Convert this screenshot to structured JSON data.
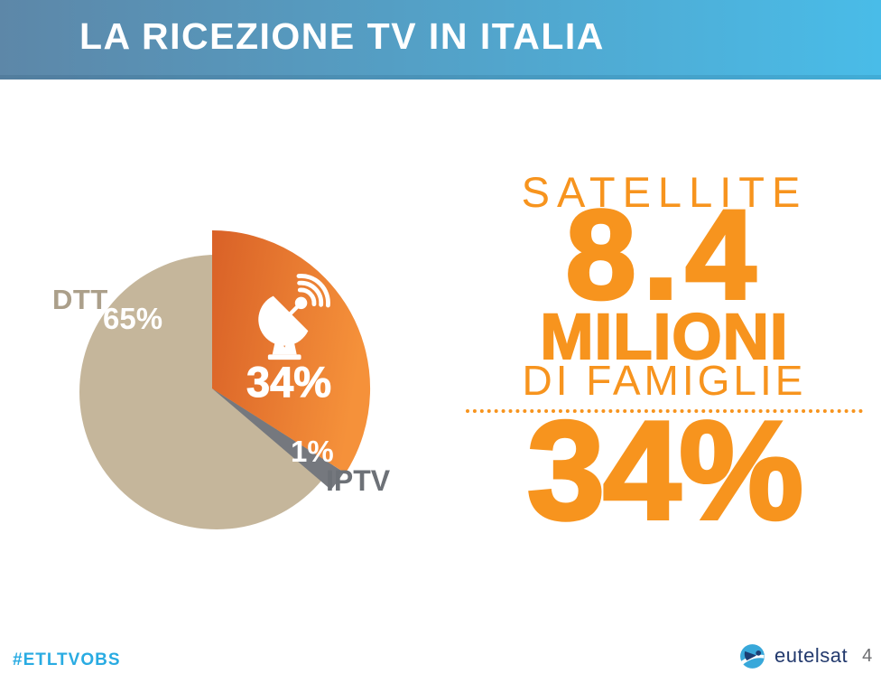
{
  "theme": {
    "header_grad_left": "#5d87a8",
    "header_grad_right": "#49bce8",
    "orange": "#f7941e",
    "beige": "#c5b69b",
    "beige_text": "#ab9f8a",
    "slate": "#75787e",
    "slate_text": "#6d7177",
    "gray_text": "#808285",
    "cyan": "#29abe2",
    "navy": "#22396d",
    "page_gray": "#6d6e71"
  },
  "header": {
    "title": "LA RICEZIONE TV IN ITALIA"
  },
  "chart_data": {
    "type": "pie",
    "title": "LA RICEZIONE TV IN ITALIA",
    "unit": "%",
    "start_angle_deg": 0,
    "direction": "clockwise",
    "legend_position": "on-slice",
    "slices": [
      {
        "label": "SATELLITE",
        "value": 34,
        "display_label": "34%",
        "color_start": "#d96127",
        "color_end": "#f5913a",
        "emphasized": true,
        "icon": "satellite-dish"
      },
      {
        "label": "IPTV",
        "value": 1,
        "display_label": "1%",
        "color": "#75787e"
      },
      {
        "label": "DTT",
        "value": 65,
        "display_label": "65%",
        "color": "#c5b69b"
      }
    ]
  },
  "pie_labels": {
    "dtt": "DTT",
    "dtt_value": "65%",
    "satellite_value": "34%",
    "iptv_value": "1%",
    "iptv": "IPTV"
  },
  "stat_panel": {
    "heading": "SATELLITE",
    "big_number": "8.4",
    "unit_line": "MILIONI",
    "sub_line": "DI FAMIGLIE",
    "percent": "34%"
  },
  "footer": {
    "hashtag": "#ETLTVOBS",
    "logo_text": "eutelsat",
    "page_number": "4"
  }
}
